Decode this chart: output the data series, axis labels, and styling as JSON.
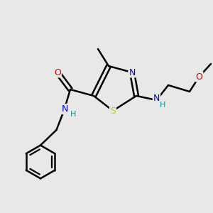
{
  "bg_color": "#e8e8e8",
  "atom_colors": {
    "C": "#000000",
    "N": "#0000cc",
    "O": "#cc0000",
    "S": "#cccc00",
    "H": "#009999"
  },
  "bond_color": "#000000",
  "bond_width": 1.8,
  "figsize": [
    3.0,
    3.0
  ],
  "dpi": 100,
  "xlim": [
    0,
    10
  ],
  "ylim": [
    0,
    10
  ]
}
